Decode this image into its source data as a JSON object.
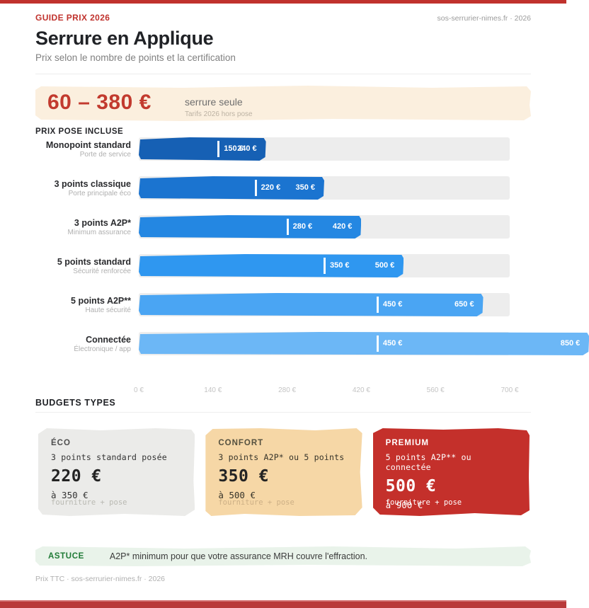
{
  "meta": {
    "kicker": "GUIDE PRIX 2026",
    "source": "sos-serrurier-nimes.fr · 2026"
  },
  "header": {
    "title": "Serrure en Applique",
    "subtitle": "Prix selon le nombre de points et la certification"
  },
  "hero": {
    "price_range": "60 – 380 €",
    "label": "serrure seule",
    "note": "Tarifs 2026 hors pose",
    "bg": "#FBEFDE",
    "accent": "#C23A2E"
  },
  "chart_data": {
    "type": "bar",
    "orientation": "horizontal",
    "title": "PRIX POSE INCLUSE",
    "unit": "€",
    "xlim": [
      0,
      700
    ],
    "grid": false,
    "track_color": "#EDEDED",
    "x_ticks": [
      {
        "value": 0,
        "label": "0 €"
      },
      {
        "value": 140,
        "label": "140 €"
      },
      {
        "value": 280,
        "label": "280 €"
      },
      {
        "value": 420,
        "label": "420 €"
      },
      {
        "value": 560,
        "label": "560 €"
      },
      {
        "value": 700,
        "label": "700 €"
      }
    ],
    "rows": [
      {
        "label": "Monopoint standard",
        "sublabel": "Porte de service",
        "min": 150,
        "max": 240,
        "min_label": "150 €",
        "max_label": "240 €",
        "color": "#1660B4"
      },
      {
        "label": "3 points classique",
        "sublabel": "Porte principale éco",
        "min": 220,
        "max": 350,
        "min_label": "220 €",
        "max_label": "350 €",
        "color": "#1B74D0"
      },
      {
        "label": "3 points A2P*",
        "sublabel": "Minimum assurance",
        "min": 280,
        "max": 420,
        "min_label": "280 €",
        "max_label": "420 €",
        "color": "#2487E2"
      },
      {
        "label": "5 points standard",
        "sublabel": "Sécurité renforcée",
        "min": 350,
        "max": 500,
        "min_label": "350 €",
        "max_label": "500 €",
        "color": "#2F97F0"
      },
      {
        "label": "5 points A2P**",
        "sublabel": "Haute sécurité",
        "min": 450,
        "max": 650,
        "min_label": "450 €",
        "max_label": "650 €",
        "color": "#4AA5F3"
      },
      {
        "label": "Connectée",
        "sublabel": "Électronique / app",
        "min": 450,
        "max": 850,
        "min_label": "450 €",
        "max_label": "850 €",
        "color": "#6CB7F6"
      }
    ]
  },
  "budgets": {
    "title": "BUDGETS TYPES",
    "cards": [
      {
        "name": "ÉCO",
        "desc": "3 points standard posée",
        "price": "220 €",
        "upto": "à 350 €",
        "note": "fourniture + pose",
        "bg": "#EBEBE9",
        "name_color": "#4E4E4E",
        "text_color": "#333333",
        "price_color": "#232323",
        "note_color": "#B9B9B2"
      },
      {
        "name": "CONFORT",
        "desc": "3 points A2P* ou 5 points",
        "price": "350 €",
        "upto": "à 500 €",
        "note": "fourniture + pose",
        "bg": "#F6D7A6",
        "name_color": "#54503F",
        "text_color": "#37342A",
        "price_color": "#232323",
        "note_color": "#CDB086"
      },
      {
        "name": "PREMIUM",
        "desc": "5 points A2P** ou connectée",
        "price": "500 €",
        "upto": "à 900 €",
        "note": "fourniture + pose",
        "bg": "#C4302B",
        "name_color": "#FFFFFF",
        "text_color": "#FFFFFF",
        "price_color": "#FFFFFF",
        "note_color": "#FFFFFF"
      }
    ]
  },
  "tip": {
    "label": "ASTUCE",
    "text": "A2P* minimum pour que votre assurance MRH couvre l'effraction.",
    "bg": "#E9F3EA",
    "accent": "#1F7B36"
  },
  "footer": {
    "text": "Prix TTC · sos-serrurier-nimes.fr · 2026"
  }
}
